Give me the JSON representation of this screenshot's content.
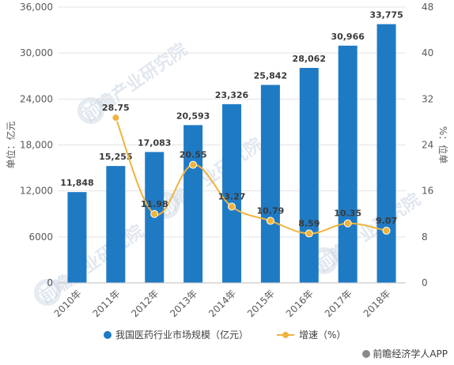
{
  "chart_data": {
    "type": "bar",
    "categories": [
      "2010年",
      "2011年",
      "2012年",
      "2013年",
      "2014年",
      "2015年",
      "2016年",
      "2017年",
      "2018年"
    ],
    "series": [
      {
        "name": "我国医药行业市场规模（亿元）",
        "type": "bar",
        "axis": "left",
        "color": "#1f7ac4",
        "values": [
          11848,
          15255,
          17083,
          20593,
          23326,
          25842,
          28062,
          30966,
          33775
        ],
        "labels": [
          "11,848",
          "15,255",
          "17,083",
          "20,593",
          "23,326",
          "25,842",
          "28,062",
          "30,966",
          "33,775"
        ]
      },
      {
        "name": "增速（%）",
        "type": "line",
        "axis": "right",
        "color": "#f0b33c",
        "values": [
          null,
          28.75,
          11.98,
          20.55,
          13.27,
          10.79,
          8.59,
          10.35,
          9.07
        ],
        "labels": [
          "",
          "28.75",
          "11.98",
          "20.55",
          "13.27",
          "10.79",
          "8.59",
          "10.35",
          "9.07"
        ]
      }
    ],
    "ylabel_left": "单位：亿元",
    "ylabel_right": "%：位单",
    "ylim_left": [
      0,
      36000
    ],
    "yticks_left": [
      "0",
      "6000",
      "12,000",
      "18,000",
      "24,000",
      "30,000",
      "36,000"
    ],
    "ylim_right": [
      0,
      48
    ],
    "yticks_right": [
      "0",
      "8",
      "16",
      "24",
      "32",
      "40",
      "48"
    ],
    "grid": true,
    "legend_position": "bottom"
  },
  "watermark": {
    "text": "前瞻产业研究院"
  },
  "source": "前瞻经济学人APP"
}
